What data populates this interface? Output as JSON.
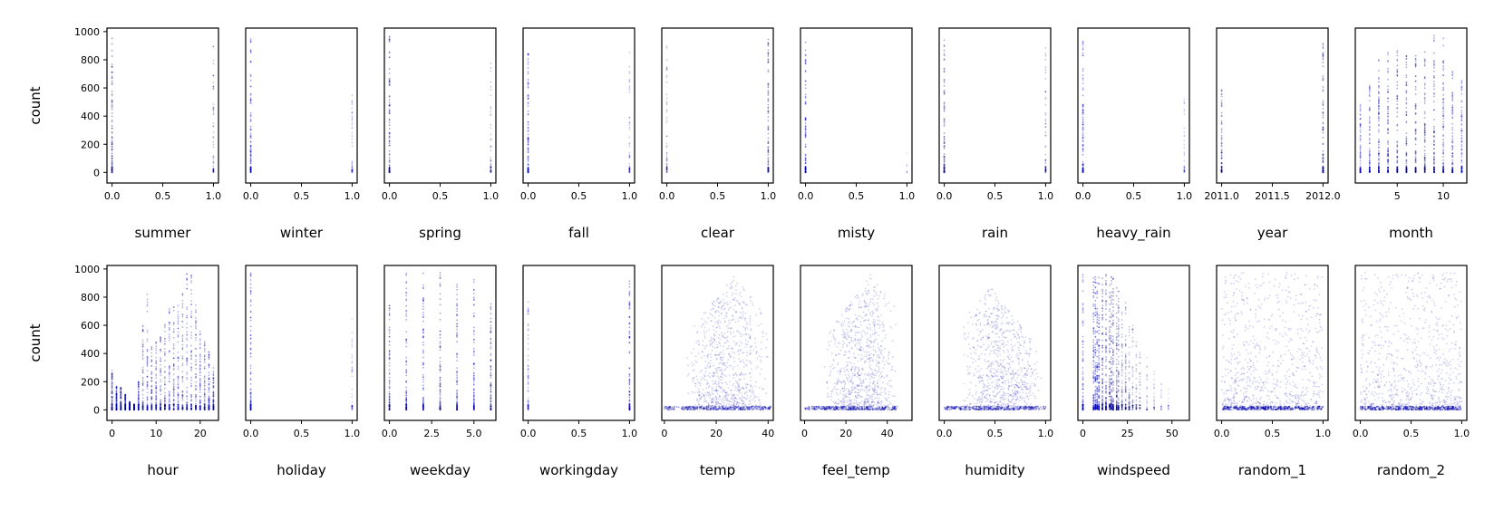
{
  "figure": {
    "ylabel": "count",
    "ylim": [
      -75,
      1025
    ],
    "yticks": [
      0,
      200,
      400,
      600,
      800,
      1000
    ],
    "marker_color": "#0000aa",
    "grid": false,
    "legend": "none"
  },
  "chart_data": [
    {
      "type": "scatter",
      "xlabel": "summer",
      "kind": "binary",
      "xlim": [
        -0.05,
        1.05
      ],
      "xticks": [
        0.0,
        0.5,
        1.0
      ],
      "xtick_labels": [
        "0.0",
        "0.5",
        "1.0"
      ],
      "x": [
        0,
        1
      ],
      "y_max": [
        960,
        900
      ],
      "y_density": [
        1.0,
        0.5
      ]
    },
    {
      "type": "scatter",
      "xlabel": "winter",
      "kind": "binary",
      "xlim": [
        -0.05,
        1.05
      ],
      "xticks": [
        0.0,
        0.5,
        1.0
      ],
      "xtick_labels": [
        "0.0",
        "0.5",
        "1.0"
      ],
      "x": [
        0,
        1
      ],
      "y_max": [
        977,
        600
      ],
      "y_density": [
        1.0,
        0.4
      ]
    },
    {
      "type": "scatter",
      "xlabel": "spring",
      "kind": "binary",
      "xlim": [
        -0.05,
        1.05
      ],
      "xticks": [
        0.0,
        0.5,
        1.0
      ],
      "xtick_labels": [
        "0.0",
        "0.5",
        "1.0"
      ],
      "x": [
        0,
        1
      ],
      "y_max": [
        977,
        870
      ],
      "y_density": [
        1.0,
        0.5
      ]
    },
    {
      "type": "scatter",
      "xlabel": "fall",
      "kind": "binary",
      "xlim": [
        -0.05,
        1.05
      ],
      "xticks": [
        0.0,
        0.5,
        1.0
      ],
      "xtick_labels": [
        "0.0",
        "0.5",
        "1.0"
      ],
      "x": [
        0,
        1
      ],
      "y_max": [
        900,
        890
      ],
      "y_density": [
        1.0,
        0.45
      ]
    },
    {
      "type": "scatter",
      "xlabel": "clear",
      "kind": "binary",
      "xlim": [
        -0.05,
        1.05
      ],
      "xticks": [
        0.0,
        0.5,
        1.0
      ],
      "xtick_labels": [
        "0.0",
        "0.5",
        "1.0"
      ],
      "x": [
        0,
        1
      ],
      "y_max": [
        900,
        977
      ],
      "y_density": [
        0.5,
        1.0
      ]
    },
    {
      "type": "scatter",
      "xlabel": "misty",
      "kind": "binary",
      "xlim": [
        -0.05,
        1.05
      ],
      "xticks": [
        0.0,
        0.5,
        1.0
      ],
      "xtick_labels": [
        "0.0",
        "0.5",
        "1.0"
      ],
      "x": [
        0,
        1
      ],
      "y_max": [
        977,
        170
      ],
      "y_density": [
        1.0,
        0.02
      ]
    },
    {
      "type": "scatter",
      "xlabel": "rain",
      "kind": "binary",
      "xlim": [
        -0.05,
        1.05
      ],
      "xticks": [
        0.0,
        0.5,
        1.0
      ],
      "xtick_labels": [
        "0.0",
        "0.5",
        "1.0"
      ],
      "x": [
        0,
        1
      ],
      "y_max": [
        977,
        890
      ],
      "y_density": [
        1.0,
        0.55
      ]
    },
    {
      "type": "scatter",
      "xlabel": "heavy_rain",
      "kind": "binary",
      "xlim": [
        -0.05,
        1.05
      ],
      "xticks": [
        0.0,
        0.5,
        1.0
      ],
      "xtick_labels": [
        "0.0",
        "0.5",
        "1.0"
      ],
      "x": [
        0,
        1
      ],
      "y_max": [
        977,
        590
      ],
      "y_density": [
        1.0,
        0.25
      ]
    },
    {
      "type": "scatter",
      "xlabel": "year",
      "kind": "binary",
      "xlim": [
        2010.95,
        2012.05
      ],
      "xticks": [
        2011.0,
        2011.5,
        2012.0
      ],
      "xtick_labels": [
        "2011.0",
        "2011.5",
        "2012.0"
      ],
      "x": [
        2011,
        2012
      ],
      "y_max": [
        620,
        977
      ],
      "y_density": [
        0.8,
        1.0
      ]
    },
    {
      "type": "scatter",
      "xlabel": "month",
      "kind": "discrete",
      "xlim": [
        0.45,
        12.55
      ],
      "xticks": [
        5,
        10
      ],
      "xtick_labels": [
        "5",
        "10"
      ],
      "x": [
        1,
        2,
        3,
        4,
        5,
        6,
        7,
        8,
        9,
        10,
        11,
        12
      ],
      "y_max": [
        530,
        620,
        800,
        860,
        880,
        880,
        850,
        890,
        977,
        970,
        720,
        660
      ],
      "y_density": [
        0.8,
        0.8,
        0.9,
        0.9,
        0.9,
        0.9,
        0.9,
        0.9,
        0.9,
        0.9,
        0.85,
        0.8
      ]
    },
    {
      "type": "scatter",
      "xlabel": "hour",
      "kind": "discrete",
      "xlim": [
        -1.15,
        24.15
      ],
      "xticks": [
        0,
        10,
        20
      ],
      "xtick_labels": [
        "0",
        "10",
        "20"
      ],
      "x": [
        0,
        1,
        2,
        3,
        4,
        5,
        6,
        7,
        8,
        9,
        10,
        11,
        12,
        13,
        14,
        15,
        16,
        17,
        18,
        19,
        20,
        21,
        22,
        23
      ],
      "y_max": [
        280,
        170,
        160,
        110,
        60,
        40,
        210,
        600,
        850,
        450,
        500,
        570,
        610,
        760,
        780,
        750,
        880,
        970,
        960,
        750,
        560,
        500,
        430,
        330
      ],
      "y_density": [
        0.9,
        0.9,
        0.9,
        0.9,
        0.9,
        0.9,
        0.8,
        0.7,
        0.7,
        0.7,
        0.7,
        0.7,
        0.7,
        0.7,
        0.7,
        0.7,
        0.7,
        0.7,
        0.7,
        0.7,
        0.7,
        0.7,
        0.8,
        0.8
      ]
    },
    {
      "type": "scatter",
      "xlabel": "holiday",
      "kind": "binary",
      "xlim": [
        -0.05,
        1.05
      ],
      "xticks": [
        0.0,
        0.5,
        1.0
      ],
      "xtick_labels": [
        "0.0",
        "0.5",
        "1.0"
      ],
      "x": [
        0,
        1
      ],
      "y_max": [
        977,
        710
      ],
      "y_density": [
        1.0,
        0.3
      ]
    },
    {
      "type": "scatter",
      "xlabel": "weekday",
      "kind": "discrete",
      "xlim": [
        -0.3,
        6.3
      ],
      "xticks": [
        0.0,
        2.5,
        5.0
      ],
      "xtick_labels": [
        "0.0",
        "2.5",
        "5.0"
      ],
      "x": [
        0,
        1,
        2,
        3,
        4,
        5,
        6
      ],
      "y_max": [
        780,
        970,
        970,
        977,
        970,
        950,
        780
      ],
      "y_density": [
        0.9,
        0.9,
        0.9,
        0.9,
        0.9,
        0.9,
        0.9
      ]
    },
    {
      "type": "scatter",
      "xlabel": "workingday",
      "kind": "binary",
      "xlim": [
        -0.05,
        1.05
      ],
      "xticks": [
        0.0,
        0.5,
        1.0
      ],
      "xtick_labels": [
        "0.0",
        "0.5",
        "1.0"
      ],
      "x": [
        0,
        1
      ],
      "y_max": [
        780,
        977
      ],
      "y_density": [
        0.6,
        1.0
      ]
    },
    {
      "type": "scatter",
      "xlabel": "temp",
      "kind": "continuous",
      "xlim": [
        -1,
        42
      ],
      "xticks": [
        0,
        20,
        40
      ],
      "xtick_labels": [
        "0",
        "20",
        "40"
      ],
      "x_range": [
        0,
        41
      ],
      "x_peak": 27,
      "y_spread": 400
    },
    {
      "type": "scatter",
      "xlabel": "feel_temp",
      "kind": "continuous",
      "xlim": [
        -2,
        52
      ],
      "xticks": [
        0,
        20,
        40
      ],
      "xtick_labels": [
        "0",
        "20",
        "40"
      ],
      "x_range": [
        0,
        45
      ],
      "x_peak": 32,
      "y_spread": 420
    },
    {
      "type": "scatter",
      "xlabel": "humidity",
      "kind": "continuous",
      "xlim": [
        -0.05,
        1.05
      ],
      "xticks": [
        0.0,
        0.5,
        1.0
      ],
      "xtick_labels": [
        "0.0",
        "0.5",
        "1.0"
      ],
      "x_range": [
        0.0,
        1.0
      ],
      "x_peak": 0.45,
      "y_spread": 330
    },
    {
      "type": "scatter",
      "xlabel": "windspeed",
      "kind": "discrete",
      "xlim": [
        -2.8,
        59.8
      ],
      "xticks": [
        0,
        25,
        50
      ],
      "xtick_labels": [
        "0",
        "25",
        "50"
      ],
      "x": [
        0,
        6,
        7,
        8,
        9,
        11,
        13,
        15,
        16,
        17,
        19,
        20,
        22,
        24,
        26,
        28,
        30,
        32,
        36,
        40,
        44,
        48
      ],
      "y_max": [
        977,
        960,
        977,
        950,
        960,
        940,
        960,
        900,
        960,
        950,
        900,
        850,
        780,
        760,
        650,
        600,
        500,
        420,
        400,
        300,
        200,
        150
      ],
      "y_density": [
        0.9,
        0.9,
        0.9,
        0.9,
        0.9,
        0.9,
        0.9,
        0.8,
        0.8,
        0.8,
        0.8,
        0.7,
        0.6,
        0.6,
        0.5,
        0.4,
        0.3,
        0.3,
        0.2,
        0.15,
        0.1,
        0.05
      ]
    },
    {
      "type": "scatter",
      "xlabel": "random_1",
      "kind": "uniform",
      "xlim": [
        -0.05,
        1.05
      ],
      "xticks": [
        0.0,
        0.5,
        1.0
      ],
      "xtick_labels": [
        "0.0",
        "0.5",
        "1.0"
      ],
      "x_range": [
        0.0,
        1.0
      ]
    },
    {
      "type": "scatter",
      "xlabel": "random_2",
      "kind": "uniform",
      "xlim": [
        -0.05,
        1.05
      ],
      "xticks": [
        0.0,
        0.5,
        1.0
      ],
      "xtick_labels": [
        "0.0",
        "0.5",
        "1.0"
      ],
      "x_range": [
        0.0,
        1.0
      ]
    }
  ]
}
